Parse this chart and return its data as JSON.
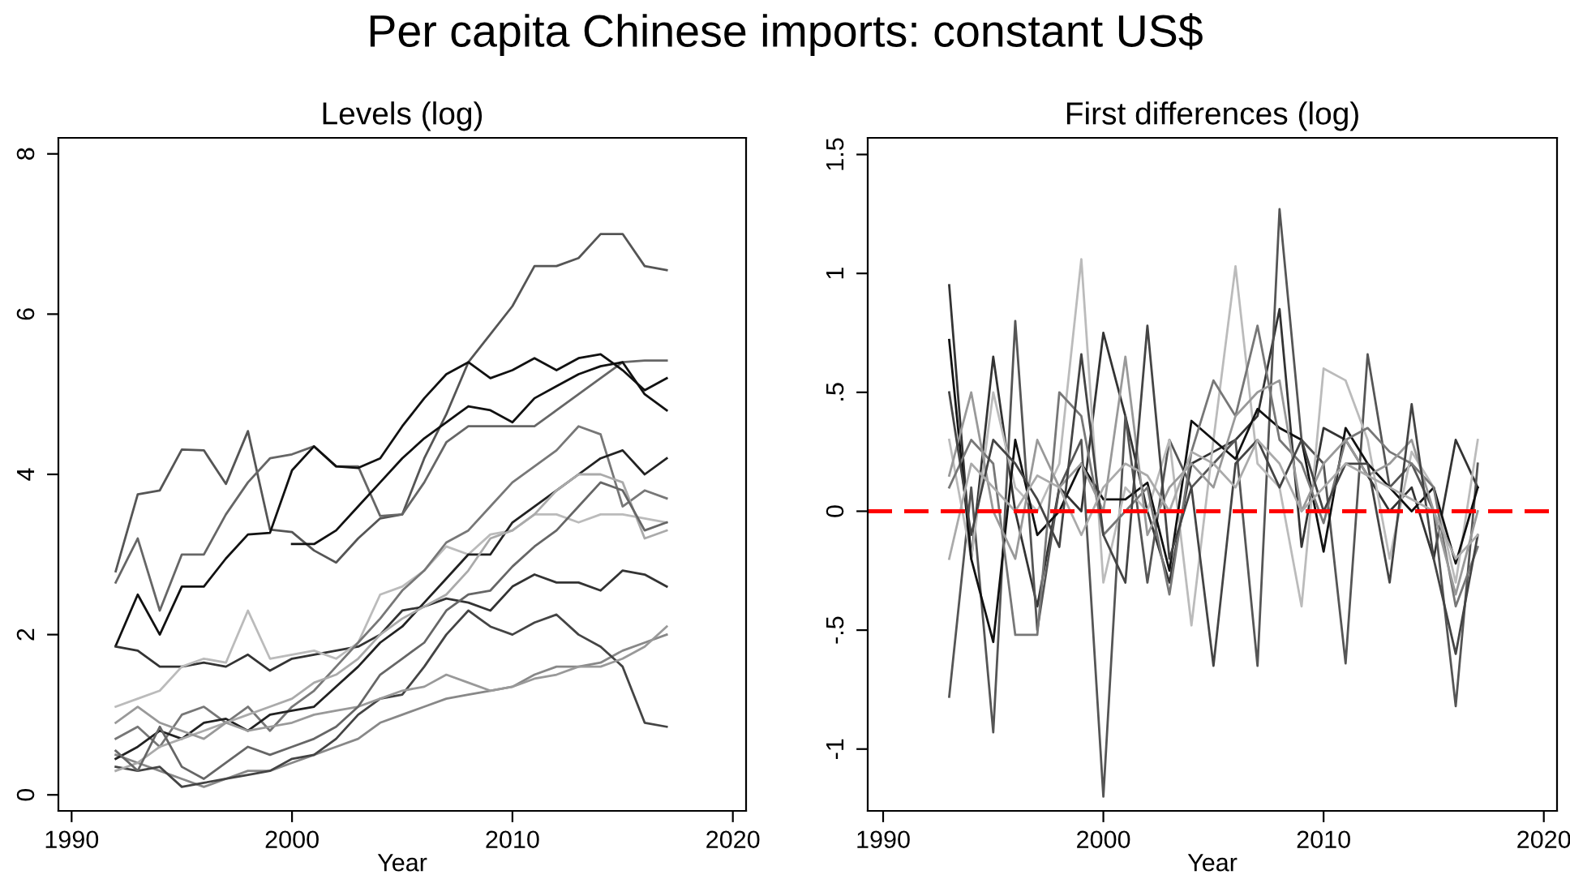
{
  "chart_data": [
    {
      "type": "line",
      "title": "Per capita Chinese imports: constant US$",
      "subtitle": "Levels (log)",
      "xlabel": "Year",
      "x": [
        1992,
        1993,
        1994,
        1995,
        1996,
        1997,
        1998,
        1999,
        2000,
        2001,
        2002,
        2003,
        2004,
        2005,
        2006,
        2007,
        2008,
        2009,
        2010,
        2011,
        2012,
        2013,
        2014,
        2015,
        2016,
        2017
      ],
      "xlim": [
        1989.4,
        2020.6
      ],
      "xticks": [
        1990,
        2000,
        2010,
        2020
      ],
      "ylim": [
        -0.2,
        8.2
      ],
      "yticks": [
        0,
        2,
        4,
        6,
        8
      ],
      "grid": false,
      "legend": false,
      "series": [
        {
          "color": "#555555",
          "values": [
            2.79,
            3.75,
            3.8,
            4.31,
            4.3,
            3.88,
            4.54,
            3.31,
            3.28,
            3.05,
            2.9,
            3.2,
            3.45,
            3.5,
            4.2,
            4.75,
            5.4,
            5.75,
            6.1,
            6.6,
            6.6,
            6.7,
            7.0,
            7.0,
            6.6,
            6.55
          ]
        },
        {
          "color": "#666666",
          "values": [
            2.65,
            3.2,
            2.3,
            3.0,
            3.0,
            3.5,
            3.9,
            4.2,
            4.25,
            4.35,
            4.1,
            4.1,
            3.48,
            3.5,
            3.9,
            4.4,
            4.6,
            4.6,
            4.6,
            4.6,
            4.8,
            5.0,
            5.2,
            5.4,
            5.42,
            5.42
          ]
        },
        {
          "color": "#111111",
          "values": [
            1.86,
            2.5,
            2.0,
            2.6,
            2.6,
            2.95,
            3.25,
            3.27,
            4.05,
            4.35,
            4.1,
            4.08,
            4.2,
            4.6,
            4.95,
            5.25,
            5.4,
            5.2,
            5.3,
            5.45,
            5.3,
            5.45,
            5.5,
            5.3,
            5.05,
            5.2
          ]
        },
        {
          "color": "#111111",
          "values": [
            null,
            null,
            null,
            null,
            null,
            null,
            null,
            null,
            3.13,
            3.13,
            3.3,
            3.6,
            3.9,
            4.2,
            4.45,
            4.65,
            4.85,
            4.8,
            4.65,
            4.95,
            5.1,
            5.25,
            5.35,
            5.4,
            5.0,
            4.8
          ]
        },
        {
          "color": "#333333",
          "values": [
            1.85,
            1.8,
            1.6,
            1.6,
            1.65,
            1.6,
            1.75,
            1.55,
            1.7,
            1.75,
            1.8,
            1.85,
            2.0,
            2.3,
            2.35,
            2.45,
            2.4,
            2.3,
            2.6,
            2.75,
            2.65,
            2.65,
            2.55,
            2.8,
            2.75,
            2.6
          ]
        },
        {
          "color": "#bbbbbb",
          "values": [
            1.1,
            1.2,
            1.3,
            1.6,
            1.7,
            1.65,
            2.3,
            1.7,
            1.75,
            1.8,
            1.7,
            1.9,
            2.5,
            2.6,
            2.8,
            3.1,
            3.0,
            3.25,
            3.3,
            3.5,
            3.5,
            3.4,
            3.5,
            3.5,
            3.45,
            3.4
          ]
        },
        {
          "color": "#888888",
          "values": [
            0.5,
            0.4,
            0.3,
            0.2,
            0.1,
            0.2,
            0.3,
            0.3,
            0.4,
            0.5,
            0.6,
            0.7,
            0.9,
            1.0,
            1.1,
            1.2,
            1.25,
            1.3,
            1.35,
            1.5,
            1.6,
            1.6,
            1.65,
            1.8,
            1.9,
            2.0
          ]
        },
        {
          "color": "#444444",
          "values": [
            0.35,
            0.3,
            0.35,
            0.1,
            0.15,
            0.2,
            0.25,
            0.3,
            0.45,
            0.5,
            0.7,
            1.0,
            1.2,
            1.25,
            1.6,
            2.0,
            2.3,
            2.1,
            2.0,
            2.15,
            2.25,
            2.0,
            1.85,
            1.6,
            0.9,
            0.85
          ]
        },
        {
          "color": "#777777",
          "values": [
            0.7,
            0.85,
            0.6,
            1.0,
            1.1,
            0.9,
            1.1,
            0.8,
            1.1,
            1.3,
            1.6,
            1.9,
            2.2,
            2.55,
            2.8,
            3.15,
            3.3,
            3.6,
            3.9,
            4.1,
            4.3,
            4.6,
            4.5,
            3.6,
            3.8,
            3.7
          ]
        },
        {
          "color": "#222222",
          "values": [
            0.45,
            0.6,
            0.8,
            0.7,
            0.9,
            0.95,
            0.8,
            1.0,
            1.05,
            1.1,
            1.35,
            1.6,
            1.9,
            2.1,
            2.4,
            2.7,
            3.0,
            3.0,
            3.4,
            3.6,
            3.8,
            4.0,
            4.2,
            4.3,
            4.0,
            4.2
          ]
        },
        {
          "color": "#aaaaaa",
          "values": [
            0.3,
            0.4,
            0.6,
            0.7,
            0.8,
            0.9,
            1.0,
            1.1,
            1.2,
            1.4,
            1.5,
            1.7,
            2.0,
            2.2,
            2.35,
            2.5,
            2.8,
            3.2,
            3.3,
            3.5,
            3.8,
            4.0,
            4.0,
            3.9,
            3.2,
            3.3
          ]
        },
        {
          "color": "#999999",
          "values": [
            0.9,
            1.1,
            0.9,
            0.8,
            0.7,
            0.9,
            0.8,
            0.85,
            0.9,
            1.0,
            1.05,
            1.1,
            1.2,
            1.3,
            1.35,
            1.5,
            1.4,
            1.3,
            1.35,
            1.45,
            1.5,
            1.6,
            1.6,
            1.7,
            1.85,
            2.1
          ]
        },
        {
          "color": "#666666",
          "values": [
            0.55,
            0.3,
            0.85,
            0.35,
            0.2,
            0.4,
            0.6,
            0.5,
            0.6,
            0.7,
            0.85,
            1.1,
            1.5,
            1.7,
            1.9,
            2.3,
            2.5,
            2.55,
            2.85,
            3.1,
            3.3,
            3.6,
            3.9,
            3.8,
            3.3,
            3.4
          ]
        }
      ]
    },
    {
      "type": "line",
      "title": "First differences (log)",
      "xlabel": "Year",
      "x": [
        1993,
        1994,
        1995,
        1996,
        1997,
        1998,
        1999,
        2000,
        2001,
        2002,
        2003,
        2004,
        2005,
        2006,
        2007,
        2008,
        2009,
        2010,
        2011,
        2012,
        2013,
        2014,
        2015,
        2016,
        2017
      ],
      "xlim": [
        1989.3,
        2020.6
      ],
      "xticks": [
        1990,
        2000,
        2010,
        2020
      ],
      "ylim": [
        -1.26,
        1.57
      ],
      "yticks": [
        {
          "value": -1,
          "label": "-1"
        },
        {
          "value": -0.5,
          "label": "-.5"
        },
        0,
        {
          "value": 0.5,
          "label": ".5"
        },
        1,
        1.5
      ],
      "grid": false,
      "legend": false,
      "ref_lines": [
        {
          "axis": "y",
          "value": 0,
          "color": "#ff0000",
          "line_style": "dashed"
        }
      ],
      "series": [
        {
          "color": "#333333",
          "values": [
            0.95,
            -0.2,
            0.65,
            0.0,
            -0.4,
            0.1,
            0.0,
            0.75,
            0.4,
            0.0,
            -0.3,
            0.2,
            0.25,
            0.3,
            0.4,
            0.85,
            -0.15,
            0.35,
            0.3,
            0.15,
            0.0,
            0.1,
            -0.2,
            0.3,
            0.1
          ]
        },
        {
          "color": "#555555",
          "values": [
            -0.78,
            0.1,
            -0.93,
            0.8,
            -0.5,
            0.1,
            0.3,
            -1.2,
            0.4,
            -0.3,
            0.3,
            0.1,
            0.2,
            0.3,
            -0.65,
            1.27,
            0.3,
            0.2,
            -0.64,
            0.66,
            0.1,
            0.2,
            0.0,
            -0.82,
            0.2
          ]
        },
        {
          "color": "#bbbbbb",
          "values": [
            0.3,
            -0.2,
            0.5,
            0.1,
            0.0,
            0.2,
            1.06,
            -0.3,
            0.1,
            0.0,
            0.3,
            -0.48,
            0.3,
            1.03,
            0.2,
            0.1,
            -0.4,
            0.6,
            0.55,
            0.3,
            -0.2,
            0.25,
            0.1,
            -0.3,
            0.3
          ]
        },
        {
          "color": "#111111",
          "values": [
            0.72,
            -0.2,
            -0.55,
            0.3,
            -0.1,
            0.0,
            0.2,
            0.05,
            0.05,
            0.12,
            -0.25,
            0.38,
            0.3,
            0.22,
            0.43,
            0.35,
            0.3,
            -0.17,
            0.35,
            0.2,
            0.1,
            0.0,
            0.1,
            -0.22,
            0.1
          ]
        },
        {
          "color": "#777777",
          "values": [
            0.1,
            0.3,
            0.2,
            -0.52,
            -0.52,
            0.5,
            0.4,
            -0.1,
            0.0,
            0.1,
            -0.35,
            0.25,
            0.55,
            0.4,
            0.78,
            0.3,
            0.2,
            -0.05,
            0.3,
            0.35,
            0.25,
            0.2,
            0.1,
            -0.4,
            -0.15
          ]
        },
        {
          "color": "#999999",
          "values": [
            0.15,
            0.5,
            0.0,
            -0.2,
            0.3,
            0.1,
            0.2,
            0.0,
            0.65,
            -0.1,
            0.1,
            0.2,
            0.1,
            0.4,
            0.5,
            0.55,
            0.0,
            0.2,
            0.3,
            0.15,
            0.2,
            0.3,
            0.0,
            -0.35,
            0.0
          ]
        },
        {
          "color": "#444444",
          "values": [
            0.5,
            -0.1,
            0.3,
            0.2,
            0.05,
            -0.15,
            0.66,
            -0.1,
            -0.3,
            0.78,
            -0.2,
            0.1,
            -0.65,
            0.2,
            0.3,
            0.1,
            0.3,
            0.0,
            0.2,
            0.2,
            -0.3,
            0.45,
            -0.2,
            -0.6,
            -0.1
          ]
        },
        {
          "color": "#aaaaaa",
          "values": [
            -0.2,
            0.2,
            0.1,
            0.0,
            0.15,
            0.1,
            -0.1,
            0.1,
            0.2,
            0.15,
            0.0,
            0.25,
            0.2,
            0.1,
            0.3,
            0.2,
            0.0,
            0.1,
            0.2,
            0.15,
            0.1,
            0.05,
            0.0,
            -0.2,
            -0.1
          ]
        }
      ]
    }
  ]
}
